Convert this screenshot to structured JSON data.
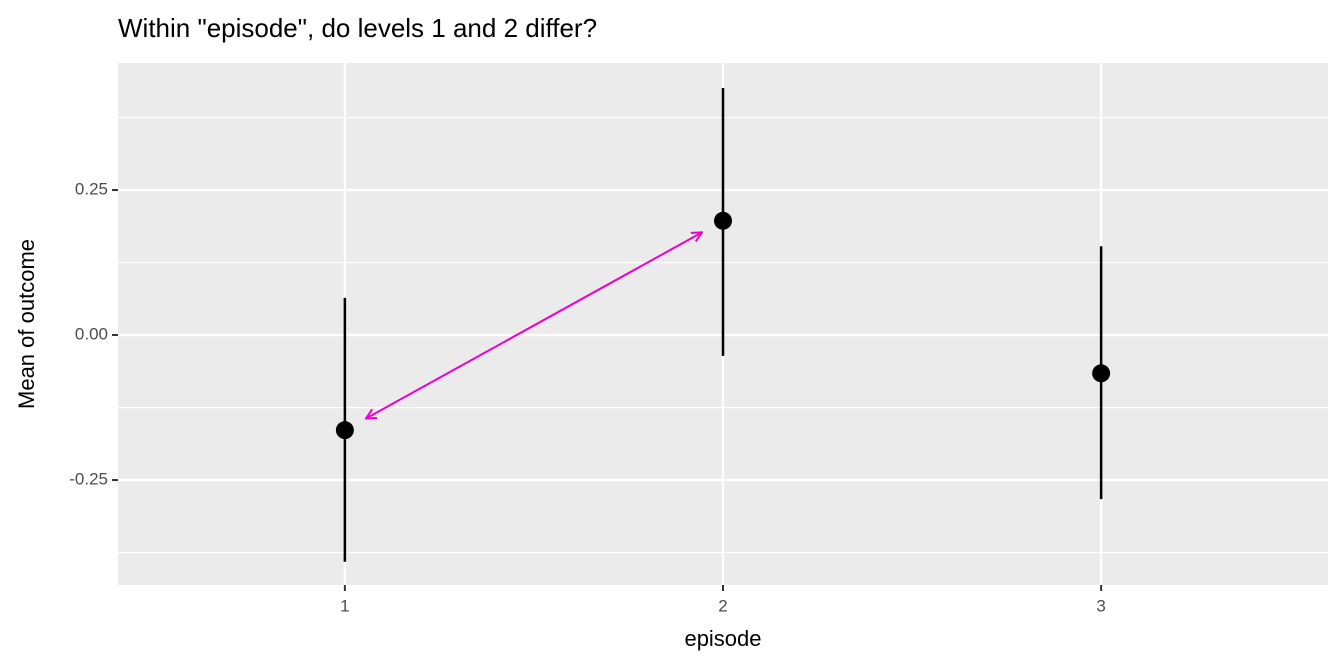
{
  "chart_data": {
    "type": "pointrange",
    "title": "Within \"episode\", do levels 1 and 2 differ?",
    "x_label": "episode",
    "y_label": "Mean of outcome",
    "categories": [
      "1",
      "2",
      "3"
    ],
    "values": [
      -0.164,
      0.197,
      -0.066
    ],
    "lower": [
      -0.391,
      -0.036,
      -0.283
    ],
    "upper": [
      0.064,
      0.426,
      0.153
    ],
    "color": "#000000",
    "ylim": [
      -0.431,
      0.469
    ],
    "yticks": [
      -0.25,
      {
        "value": 0,
        "label": "0.00"
      },
      0.25
    ],
    "minor_yticks": [
      -0.375,
      -0.125,
      0.125,
      0.375
    ],
    "grid": true,
    "arrow_color": "#ee00cc"
  }
}
